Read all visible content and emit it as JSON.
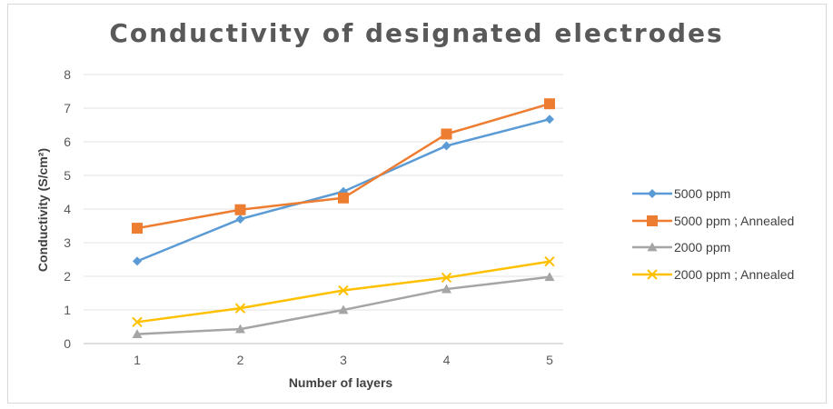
{
  "chart_data": {
    "type": "line",
    "title": "Conductivity of designated electrodes",
    "xlabel": "Number of layers",
    "ylabel": "Conductivity (S/cm²)",
    "categories": [
      "1",
      "2",
      "3",
      "4",
      "5"
    ],
    "ylim": [
      0,
      8
    ],
    "yticks": [
      "0",
      "1",
      "2",
      "3",
      "4",
      "5",
      "6",
      "7",
      "8"
    ],
    "grid": "horizontal",
    "legend_position": "right",
    "series": [
      {
        "name": "5000 ppm",
        "values": [
          2.45,
          3.7,
          4.52,
          5.88,
          6.67
        ],
        "color": "#5b9bd5",
        "marker": "diamond"
      },
      {
        "name": "5000 ppm ; Annealed",
        "values": [
          3.43,
          3.98,
          4.33,
          6.23,
          7.13
        ],
        "color": "#ed7d31",
        "marker": "square"
      },
      {
        "name": "2000 ppm",
        "values": [
          0.28,
          0.43,
          1.0,
          1.62,
          1.98
        ],
        "color": "#a5a5a5",
        "marker": "triangle"
      },
      {
        "name": "2000 ppm ; Annealed",
        "values": [
          0.64,
          1.05,
          1.58,
          1.96,
          2.44
        ],
        "color": "#ffc000",
        "marker": "x"
      }
    ]
  }
}
